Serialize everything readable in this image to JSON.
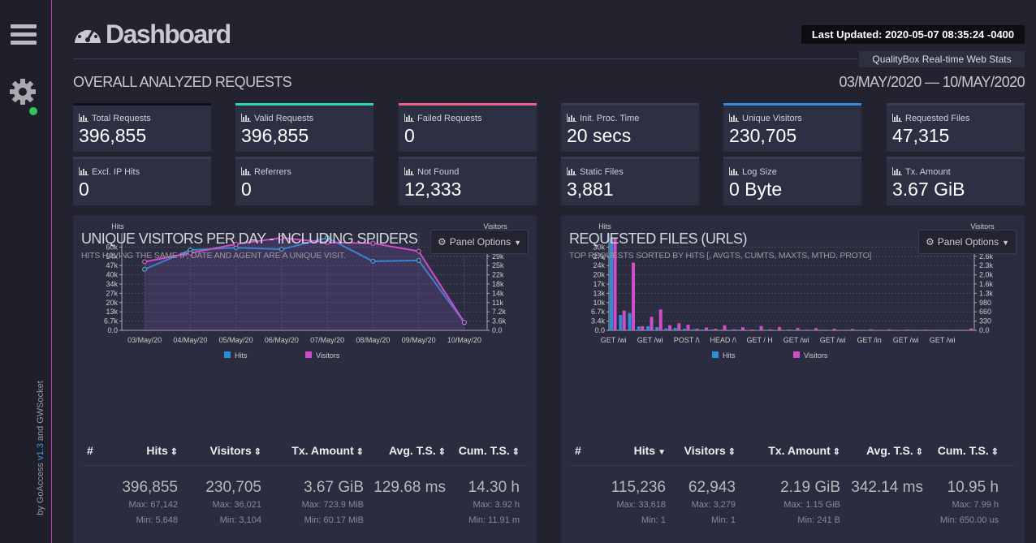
{
  "sidebar": {
    "credit_prefix": "by GoAccess",
    "version": "v1.3",
    "credit_suffix": "and GWSocket"
  },
  "header": {
    "title": "Dashboard",
    "last_updated": "Last Updated: 2020-05-07 08:35:24 -0400",
    "subtitle": "QualityBox Real-time Web Stats"
  },
  "overall": {
    "title": "OVERALL ANALYZED REQUESTS",
    "date_range": "03/MAY/2020 — 10/MAY/2020",
    "cards": [
      {
        "label": "Total Requests",
        "value": "396,855",
        "accent": "#111118"
      },
      {
        "label": "Valid Requests",
        "value": "396,855",
        "accent": "#2ad8b4"
      },
      {
        "label": "Failed Requests",
        "value": "0",
        "accent": "#ef5d8e"
      },
      {
        "label": "Init. Proc. Time",
        "value": "20 secs",
        "accent": "#3a3c52"
      },
      {
        "label": "Unique Visitors",
        "value": "230,705",
        "accent": "#2f8ee0"
      },
      {
        "label": "Requested Files",
        "value": "47,315",
        "accent": "#3a3c52"
      },
      {
        "label": "Excl. IP Hits",
        "value": "0",
        "accent": "#3a3c52"
      },
      {
        "label": "Referrers",
        "value": "0",
        "accent": "#3a3c52"
      },
      {
        "label": "Not Found",
        "value": "12,333",
        "accent": "#3a3c52"
      },
      {
        "label": "Static Files",
        "value": "3,881",
        "accent": "#3a3c52"
      },
      {
        "label": "Log Size",
        "value": "0 Byte",
        "accent": "#3a3c52"
      },
      {
        "label": "Tx. Amount",
        "value": "3.67 GiB",
        "accent": "#3a3c52"
      }
    ]
  },
  "panels": [
    {
      "title": "UNIQUE VISITORS PER DAY - INCLUDING SPIDERS",
      "subtitle": "HITS HAVING THE SAME IP, DATE AND AGENT ARE A UNIQUE VISIT.",
      "button": "Panel Options",
      "chart": {
        "type": "line",
        "y_label": "Hits",
        "y2_label": "Visitors",
        "grid": true,
        "categories": [
          "03/May/20",
          "04/May/20",
          "05/May/20",
          "06/May/20",
          "07/May/20",
          "08/May/20",
          "09/May/20",
          "10/May/20"
        ],
        "series": [
          {
            "name": "Hits",
            "color": "#2a8fd8",
            "values": [
              44300,
              58300,
              60000,
              58800,
              67142,
              50100,
              50700,
              5648
            ]
          },
          {
            "name": "Visitors",
            "color": "#d04cc8",
            "axis": "y2",
            "values": [
              26700,
              30100,
              33550,
              36021,
              34200,
              33900,
              30800,
              3104
            ]
          }
        ],
        "ylim": [
          0,
          67142
        ],
        "yticks": [
          {
            "value": 0,
            "label": "0.0"
          },
          {
            "value": 6714,
            "label": "6.7k"
          },
          {
            "value": 13428,
            "label": "13k"
          },
          {
            "value": 20143,
            "label": "20k"
          },
          {
            "value": 26857,
            "label": "27k"
          },
          {
            "value": 33571,
            "label": "34k"
          },
          {
            "value": 40285,
            "label": "40k"
          },
          {
            "value": 47000,
            "label": "47k"
          },
          {
            "value": 53714,
            "label": "54k"
          },
          {
            "value": 60428,
            "label": "60k"
          }
        ],
        "y2lim": [
          0,
          36021
        ],
        "y2ticks": [
          {
            "value": 0,
            "label": "0.0"
          },
          {
            "value": 3602,
            "label": "3.6k"
          },
          {
            "value": 7204,
            "label": "7.2k"
          },
          {
            "value": 10806,
            "label": "11k"
          },
          {
            "value": 14408,
            "label": "14k"
          },
          {
            "value": 18010,
            "label": "18k"
          },
          {
            "value": 21613,
            "label": "22k"
          },
          {
            "value": 25215,
            "label": "25k"
          },
          {
            "value": 28817,
            "label": "29k"
          },
          {
            "value": 32419,
            "label": "32k"
          }
        ]
      },
      "table": {
        "headers": [
          "#",
          "Hits",
          "Visitors",
          "Tx. Amount",
          "Avg. T.S.",
          "Cum. T.S."
        ],
        "row": [
          {
            "value": "396,855",
            "max": "Max: 67,142",
            "min": "Min: 5,648"
          },
          {
            "value": "230,705",
            "max": "Max: 36,021",
            "min": "Min: 3,104"
          },
          {
            "value": "3.67 GiB",
            "max": "Max: 723.9 MiB",
            "min": "Min: 60.17 MiB"
          },
          {
            "value": "129.68 ms"
          },
          {
            "value": "14.30 h",
            "max": "Max: 3.92 h",
            "min": "Min: 11.91 m"
          }
        ]
      }
    },
    {
      "title": "REQUESTED FILES (URLS)",
      "subtitle": "TOP REQUESTS SORTED BY HITS [, AVGTS, CUMTS, MAXTS, MTHD, PROTO]",
      "button": "Panel Options",
      "chart": {
        "type": "bar",
        "y_label": "Hits",
        "y2_label": "Visitors",
        "grid": true,
        "categories": [
          "GET /wi",
          null,
          null,
          null,
          "GET /wi",
          null,
          null,
          null,
          "POST /\\",
          null,
          null,
          null,
          "HEAD /\\",
          null,
          null,
          null,
          "GET / H",
          null,
          null,
          null,
          "GET /wi",
          null,
          null,
          null,
          "GET /wi",
          null,
          null,
          null,
          "GET /in",
          null,
          null,
          null,
          "GET /wi",
          null,
          null,
          null,
          "GET /wi",
          null,
          null,
          null
        ],
        "series": [
          {
            "name": "Hits",
            "color": "#2a8fd8",
            "values": [
              33618,
              5600,
              6300,
              1400,
              1500,
              1200,
              700,
              900,
              600,
              400,
              300,
              350,
              250,
              200,
              300,
              180,
              150,
              220,
              130,
              120,
              160,
              110,
              100,
              90,
              130,
              85,
              80,
              75,
              100,
              70,
              65,
              60,
              80,
              55,
              50,
              48,
              45,
              42,
              40,
              38
            ]
          },
          {
            "name": "Visitors",
            "color": "#d04cc8",
            "axis": "y2",
            "values": [
              3279,
              700,
              2400,
              150,
              480,
              740,
              180,
              250,
              200,
              60,
              100,
              60,
              180,
              40,
              110,
              30,
              150,
              40,
              120,
              30,
              90,
              25,
              80,
              20,
              60,
              20,
              50,
              18,
              40,
              16,
              35,
              15,
              30,
              14,
              25,
              12,
              20,
              10,
              18,
              70
            ]
          }
        ],
        "ylim": [
          0,
          33618
        ],
        "yticks": [
          {
            "value": 0,
            "label": "0.0"
          },
          {
            "value": 3362,
            "label": "3.4k"
          },
          {
            "value": 6724,
            "label": "6.7k"
          },
          {
            "value": 10085,
            "label": "10k"
          },
          {
            "value": 13447,
            "label": "13k"
          },
          {
            "value": 16809,
            "label": "17k"
          },
          {
            "value": 20171,
            "label": "20k"
          },
          {
            "value": 23533,
            "label": "24k"
          },
          {
            "value": 26894,
            "label": "27k"
          },
          {
            "value": 30256,
            "label": "30k"
          }
        ],
        "y2lim": [
          0,
          3279
        ],
        "y2ticks": [
          {
            "value": 0,
            "label": "0.0"
          },
          {
            "value": 328,
            "label": "330"
          },
          {
            "value": 656,
            "label": "660"
          },
          {
            "value": 984,
            "label": "980"
          },
          {
            "value": 1312,
            "label": "1.3k"
          },
          {
            "value": 1640,
            "label": "1.6k"
          },
          {
            "value": 1967,
            "label": "2.0k"
          },
          {
            "value": 2295,
            "label": "2.3k"
          },
          {
            "value": 2623,
            "label": "2.6k"
          },
          {
            "value": 2951,
            "label": "3.0k"
          }
        ]
      },
      "table": {
        "headers": [
          "#",
          "Hits",
          "Visitors",
          "Tx. Amount",
          "Avg. T.S.",
          "Cum. T.S."
        ],
        "row": [
          {
            "value": "115,236",
            "max": "Max: 33,618",
            "min": "Min: 1"
          },
          {
            "value": "62,943",
            "max": "Max: 3,279",
            "min": "Min: 1"
          },
          {
            "value": "2.19 GiB",
            "max": "Max: 1.15 GiB",
            "min": "Min: 241 B"
          },
          {
            "value": "342.14 ms"
          },
          {
            "value": "10.95 h",
            "max": "Max: 7.99 h",
            "min": "Min: 650.00 us"
          }
        ]
      }
    }
  ]
}
